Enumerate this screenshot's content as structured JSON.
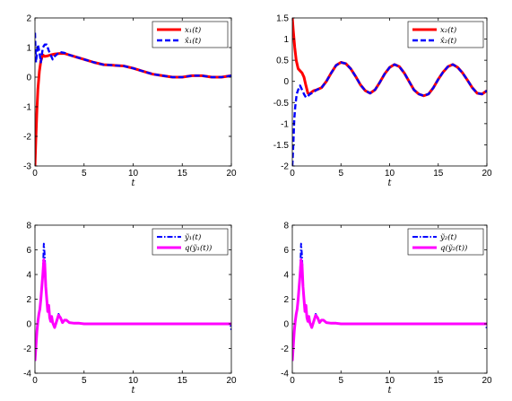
{
  "chart_data": [
    {
      "type": "line",
      "xlabel": "t",
      "xlim": [
        0,
        20
      ],
      "ylim": [
        -3,
        2
      ],
      "xticks": [
        0,
        5,
        10,
        15,
        20
      ],
      "yticks": [
        -3,
        -2,
        -1,
        0,
        1,
        2
      ],
      "grid": false,
      "legend_position": "top-right",
      "series": [
        {
          "name": "x₁(t)",
          "color": "#ff0000",
          "style": "solid",
          "x": [
            0,
            0.1,
            0.2,
            0.3,
            0.45,
            0.6,
            0.8,
            1.0,
            1.3,
            1.6,
            2.0,
            2.5,
            3.0,
            3.5,
            4.0,
            5.0,
            6.0,
            7.0,
            8.0,
            9.0,
            10.0,
            11.0,
            12.0,
            13.0,
            14.0,
            15.0,
            16.0,
            17.0,
            18.0,
            19.0,
            20.0
          ],
          "y": [
            -3.0,
            -2.0,
            -1.1,
            -0.4,
            0.2,
            0.55,
            0.75,
            0.7,
            0.72,
            0.75,
            0.78,
            0.8,
            0.8,
            0.75,
            0.7,
            0.6,
            0.5,
            0.42,
            0.4,
            0.38,
            0.3,
            0.2,
            0.1,
            0.05,
            0.0,
            0.0,
            0.05,
            0.05,
            0.0,
            0.0,
            0.05
          ]
        },
        {
          "name": "x̂₁(t)",
          "color": "#0000ff",
          "style": "dashed",
          "x": [
            0,
            0.1,
            0.2,
            0.3,
            0.45,
            0.6,
            0.8,
            1.0,
            1.2,
            1.4,
            1.6,
            1.8,
            2.0,
            2.5,
            3.0,
            3.5,
            4.0,
            5.0,
            6.0,
            7.0,
            8.0,
            9.0,
            10.0,
            11.0,
            12.0,
            13.0,
            14.0,
            15.0,
            16.0,
            17.0,
            18.0,
            19.0,
            20.0
          ],
          "y": [
            1.5,
            0.5,
            0.8,
            1.1,
            0.85,
            0.5,
            1.0,
            1.1,
            1.1,
            0.9,
            0.75,
            0.6,
            0.7,
            0.85,
            0.82,
            0.75,
            0.7,
            0.6,
            0.5,
            0.42,
            0.4,
            0.38,
            0.3,
            0.2,
            0.1,
            0.05,
            0.0,
            0.0,
            0.05,
            0.05,
            0.0,
            0.0,
            0.05
          ]
        }
      ]
    },
    {
      "type": "line",
      "xlabel": "t",
      "xlim": [
        0,
        20
      ],
      "ylim": [
        -2,
        1.5
      ],
      "xticks": [
        0,
        5,
        10,
        15,
        20
      ],
      "yticks": [
        -2,
        -1.5,
        -1,
        -0.5,
        0,
        0.5,
        1,
        1.5
      ],
      "grid": false,
      "legend_position": "top-right",
      "series": [
        {
          "name": "x₂(t)",
          "color": "#ff0000",
          "style": "solid",
          "x": [
            0,
            0.1,
            0.25,
            0.4,
            0.6,
            0.8,
            1.0,
            1.2,
            1.4,
            1.6,
            1.8,
            2.0,
            2.2,
            2.5,
            3.0,
            3.5,
            4.0,
            4.5,
            5.0,
            5.5,
            6.0,
            6.5,
            7.0,
            7.5,
            8.0,
            8.5,
            9.0,
            9.5,
            10.0,
            10.5,
            11.0,
            11.5,
            12.0,
            12.5,
            13.0,
            13.5,
            14.0,
            14.5,
            15.0,
            15.5,
            16.0,
            16.5,
            17.0,
            17.5,
            18.0,
            18.5,
            19.0,
            19.5,
            20.0
          ],
          "y": [
            1.5,
            1.2,
            0.8,
            0.5,
            0.3,
            0.25,
            0.2,
            0.1,
            -0.1,
            -0.28,
            -0.3,
            -0.25,
            -0.22,
            -0.2,
            -0.15,
            0.0,
            0.2,
            0.38,
            0.45,
            0.42,
            0.3,
            0.12,
            -0.08,
            -0.22,
            -0.28,
            -0.2,
            -0.02,
            0.18,
            0.33,
            0.4,
            0.35,
            0.2,
            0.0,
            -0.2,
            -0.3,
            -0.34,
            -0.3,
            -0.15,
            0.05,
            0.22,
            0.35,
            0.4,
            0.33,
            0.2,
            0.03,
            -0.15,
            -0.28,
            -0.3,
            -0.22
          ]
        },
        {
          "name": "x̂₂(t)",
          "color": "#0000ff",
          "style": "dashed",
          "x": [
            0,
            0.1,
            0.2,
            0.3,
            0.45,
            0.6,
            0.8,
            1.0,
            1.2,
            1.4,
            1.6,
            1.8,
            2.0,
            2.2,
            2.5,
            3.0,
            3.5,
            4.0,
            4.5,
            5.0,
            5.5,
            6.0,
            6.5,
            7.0,
            7.5,
            8.0,
            8.5,
            9.0,
            9.5,
            10.0,
            10.5,
            11.0,
            11.5,
            12.0,
            12.5,
            13.0,
            13.5,
            14.0,
            14.5,
            15.0,
            15.5,
            16.0,
            16.5,
            17.0,
            17.5,
            18.0,
            18.5,
            19.0,
            19.5,
            20.0
          ],
          "y": [
            -2.0,
            -1.5,
            -0.9,
            -0.6,
            -0.3,
            -0.2,
            -0.1,
            -0.2,
            -0.3,
            -0.38,
            -0.35,
            -0.3,
            -0.28,
            -0.25,
            -0.2,
            -0.15,
            0.0,
            0.2,
            0.38,
            0.45,
            0.42,
            0.3,
            0.12,
            -0.08,
            -0.22,
            -0.28,
            -0.2,
            -0.02,
            0.18,
            0.33,
            0.4,
            0.35,
            0.2,
            0.0,
            -0.2,
            -0.3,
            -0.34,
            -0.3,
            -0.15,
            0.05,
            0.22,
            0.35,
            0.4,
            0.33,
            0.2,
            0.03,
            -0.15,
            -0.28,
            -0.3,
            -0.22
          ]
        }
      ]
    },
    {
      "type": "line",
      "xlabel": "t",
      "xlim": [
        0,
        20
      ],
      "ylim": [
        -4,
        8
      ],
      "xticks": [
        0,
        5,
        10,
        15,
        20
      ],
      "yticks": [
        -4,
        -2,
        0,
        2,
        4,
        6,
        8
      ],
      "grid": false,
      "legend_position": "top-right",
      "series": [
        {
          "name": "ỹ₁(t)",
          "color": "#0000ff",
          "style": "dashdot",
          "x": [
            0,
            0.1,
            0.2,
            0.3,
            0.4,
            0.5,
            0.6,
            0.7,
            0.8,
            0.9,
            1.0,
            1.1,
            1.2,
            1.3,
            1.4,
            1.5,
            1.6,
            1.7,
            1.8,
            2.0,
            2.2,
            2.4,
            2.6,
            2.8,
            3.0,
            3.2,
            3.5,
            4.0,
            4.5,
            5.0,
            10.0,
            15.0,
            19.9,
            20.0
          ],
          "y": [
            -3.0,
            -1.8,
            -0.6,
            0.2,
            0.8,
            1.2,
            2.0,
            3.0,
            4.0,
            6.5,
            5.5,
            3.0,
            2.0,
            1.0,
            1.5,
            0.5,
            0.2,
            0.6,
            0.1,
            -0.3,
            0.2,
            0.8,
            0.5,
            0.1,
            0.3,
            0.3,
            0.1,
            0.05,
            0.05,
            0.0,
            0.0,
            0.0,
            0.0,
            -0.5
          ]
        },
        {
          "name": "q(ỹ₁(t))",
          "color": "#ff00ff",
          "style": "solid",
          "x": [
            0,
            0.1,
            0.2,
            0.3,
            0.4,
            0.5,
            0.6,
            0.7,
            0.8,
            0.9,
            1.0,
            1.1,
            1.2,
            1.3,
            1.4,
            1.5,
            1.6,
            1.7,
            1.8,
            2.0,
            2.2,
            2.4,
            2.6,
            2.8,
            3.0,
            3.2,
            3.5,
            4.0,
            4.5,
            5.0,
            10.0,
            15.0,
            19.9,
            20.0
          ],
          "y": [
            -3.0,
            -1.8,
            -0.6,
            0.2,
            0.8,
            1.2,
            2.0,
            3.0,
            4.0,
            5.2,
            4.8,
            3.0,
            2.0,
            1.0,
            1.5,
            0.5,
            0.2,
            0.6,
            0.1,
            -0.3,
            0.2,
            0.7,
            0.5,
            0.1,
            0.3,
            0.3,
            0.1,
            0.05,
            0.05,
            0.0,
            0.0,
            0.0,
            0.0,
            0.0
          ]
        }
      ]
    },
    {
      "type": "line",
      "xlabel": "t",
      "xlim": [
        0,
        20
      ],
      "ylim": [
        -4,
        8
      ],
      "xticks": [
        0,
        5,
        10,
        15,
        20
      ],
      "yticks": [
        -4,
        -2,
        0,
        2,
        4,
        6,
        8
      ],
      "grid": false,
      "legend_position": "top-right",
      "series": [
        {
          "name": "ỹ₂(t)",
          "color": "#0000ff",
          "style": "dashdot",
          "x": [
            0,
            0.1,
            0.2,
            0.3,
            0.4,
            0.5,
            0.6,
            0.7,
            0.8,
            0.9,
            1.0,
            1.1,
            1.2,
            1.3,
            1.4,
            1.5,
            1.6,
            1.7,
            1.8,
            2.0,
            2.2,
            2.4,
            2.6,
            2.8,
            3.0,
            3.2,
            3.5,
            4.0,
            4.5,
            5.0,
            10.0,
            15.0,
            19.9,
            20.0
          ],
          "y": [
            -3.0,
            -1.8,
            -0.6,
            0.2,
            0.8,
            1.2,
            2.0,
            3.0,
            4.0,
            6.5,
            5.5,
            3.0,
            2.0,
            1.0,
            1.5,
            0.5,
            0.2,
            0.6,
            0.1,
            -0.3,
            0.2,
            0.8,
            0.5,
            0.1,
            0.3,
            0.3,
            0.1,
            0.05,
            0.05,
            0.0,
            0.0,
            0.0,
            0.0,
            -0.5
          ]
        },
        {
          "name": "q(ỹ₂(t))",
          "color": "#ff00ff",
          "style": "solid",
          "x": [
            0,
            0.1,
            0.2,
            0.3,
            0.4,
            0.5,
            0.6,
            0.7,
            0.8,
            0.9,
            1.0,
            1.1,
            1.2,
            1.3,
            1.4,
            1.5,
            1.6,
            1.7,
            1.8,
            2.0,
            2.2,
            2.4,
            2.6,
            2.8,
            3.0,
            3.2,
            3.5,
            4.0,
            4.5,
            5.0,
            10.0,
            15.0,
            19.9,
            20.0
          ],
          "y": [
            -3.0,
            -1.8,
            -0.6,
            0.2,
            0.8,
            1.2,
            2.0,
            3.0,
            4.0,
            5.2,
            4.8,
            3.0,
            2.0,
            1.0,
            1.5,
            0.5,
            0.2,
            0.6,
            0.1,
            -0.3,
            0.2,
            0.7,
            0.5,
            0.1,
            0.3,
            0.3,
            0.1,
            0.05,
            0.05,
            0.0,
            0.0,
            0.0,
            0.0,
            0.0
          ]
        }
      ]
    }
  ]
}
